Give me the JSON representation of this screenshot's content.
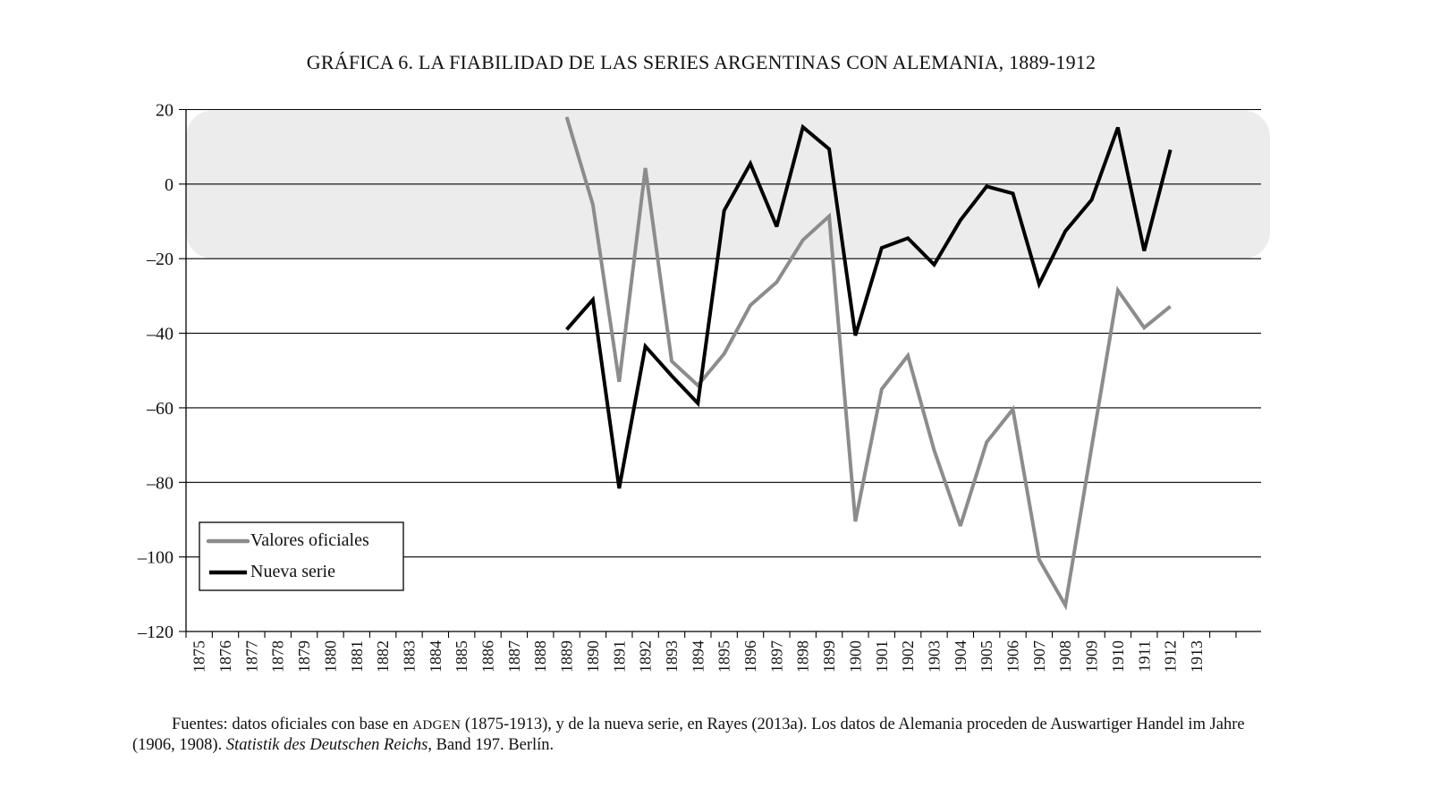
{
  "chart_data": {
    "type": "line",
    "title": "GRÁFICA 6. LA FIABILIDAD DE LAS SERIES ARGENTINAS CON ALEMANIA, 1889-1912",
    "xlabel": "",
    "ylabel": "",
    "ylim": [
      -120,
      20
    ],
    "yticks": [
      "20",
      "0",
      "–20",
      "–40",
      "–60",
      "–80",
      "–100",
      "–120"
    ],
    "ytick_values": [
      20,
      0,
      -20,
      -40,
      -60,
      -80,
      -100,
      -120
    ],
    "categories": [
      "1875",
      "1876",
      "1877",
      "1878",
      "1879",
      "1880",
      "1881",
      "1882",
      "1883",
      "1884",
      "1885",
      "1886",
      "1887",
      "1888",
      "1889",
      "1890",
      "1891",
      "1892",
      "1893",
      "1894",
      "1895",
      "1896",
      "1897",
      "1898",
      "1899",
      "1900",
      "1901",
      "1902",
      "1903",
      "1904",
      "1905",
      "1906",
      "1907",
      "1908",
      "1909",
      "1910",
      "1911",
      "1912",
      "1913"
    ],
    "category_slots": 41,
    "grid": true,
    "shaded_band": {
      "from": -20,
      "to": 20,
      "color": "#ececec"
    },
    "legend_position": "bottom-left",
    "series": [
      {
        "name": "Valores oficiales",
        "color": "#8c8c8c",
        "x": [
          1889,
          1890,
          1891,
          1892,
          1893,
          1894,
          1895,
          1896,
          1897,
          1898,
          1899,
          1900,
          1901,
          1902,
          1903,
          1904,
          1905,
          1906,
          1907,
          1908,
          1909,
          1910,
          1911,
          1912
        ],
        "values": [
          18,
          -5.5,
          -53,
          4.3,
          -47.5,
          -54,
          -45.5,
          -32.5,
          -26.3,
          -15,
          -8.6,
          -90.5,
          -55,
          -46,
          -71.4,
          -91.7,
          -69.2,
          -60.4,
          -100.7,
          -113,
          -70.5,
          -28.5,
          -38.5,
          -32.8
        ]
      },
      {
        "name": "Nueva serie",
        "color": "#000000",
        "x": [
          1889,
          1890,
          1891,
          1892,
          1893,
          1894,
          1895,
          1896,
          1897,
          1898,
          1899,
          1900,
          1901,
          1902,
          1903,
          1904,
          1905,
          1906,
          1907,
          1908,
          1909,
          1910,
          1911,
          1912
        ],
        "values": [
          -39,
          -31,
          -81.6,
          -43.5,
          -51.4,
          -58.8,
          -7.1,
          5.5,
          -11.4,
          15.3,
          9.4,
          -40.6,
          -17.1,
          -14.5,
          -21.6,
          -9.7,
          -0.6,
          -2.5,
          -26.8,
          -12.6,
          -4.2,
          15.2,
          -17.9,
          9.2
        ]
      }
    ]
  },
  "footer": {
    "part1": "Fuentes: datos oficiales con base en ",
    "smallcaps": "ADGEN",
    "part2": " (1875-1913), y de la nueva serie, en Rayes (2013a). Los datos de Alemania proceden de Auswartiger Handel im Jahre (1906, 1908). ",
    "italic": "Statistik des Deutschen Reichs",
    "part3": ", Band 197. Berlín."
  }
}
